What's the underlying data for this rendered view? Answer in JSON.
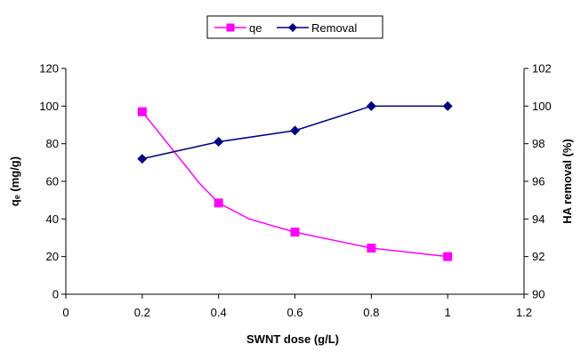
{
  "chart_data": {
    "type": "line",
    "xlabel": "SWNT dose (g/L)",
    "ylabel": "qₑ (mg/g)",
    "y2label": "HA removal (%)",
    "xlim": [
      0,
      1.2
    ],
    "xticks": [
      0,
      0.2,
      0.4,
      0.6,
      0.8,
      1,
      1.2
    ],
    "ylim": [
      0,
      120
    ],
    "yticks": [
      0,
      20,
      40,
      60,
      80,
      100,
      120
    ],
    "y2lim": [
      90,
      102
    ],
    "y2ticks": [
      90,
      92,
      94,
      96,
      98,
      100,
      102
    ],
    "grid": false,
    "legend_position": "top-center",
    "series": [
      {
        "name": "qe",
        "axis": "left",
        "color": "#ff00ff",
        "marker": "square",
        "x": [
          0.2,
          0.4,
          0.6,
          0.8,
          1
        ],
        "values": [
          97,
          48.5,
          33,
          24.5,
          20
        ],
        "curve": [
          [
            0.2,
            97
          ],
          [
            0.35,
            59
          ],
          [
            0.4,
            48.5
          ],
          [
            0.48,
            40
          ],
          [
            0.6,
            33
          ],
          [
            0.8,
            24.5
          ],
          [
            1,
            20
          ]
        ]
      },
      {
        "name": "Removal",
        "axis": "right",
        "color": "#000080",
        "marker": "diamond",
        "x": [
          0.2,
          0.4,
          0.6,
          0.8,
          1
        ],
        "values": [
          97.2,
          98.1,
          98.7,
          100,
          100
        ]
      }
    ]
  }
}
